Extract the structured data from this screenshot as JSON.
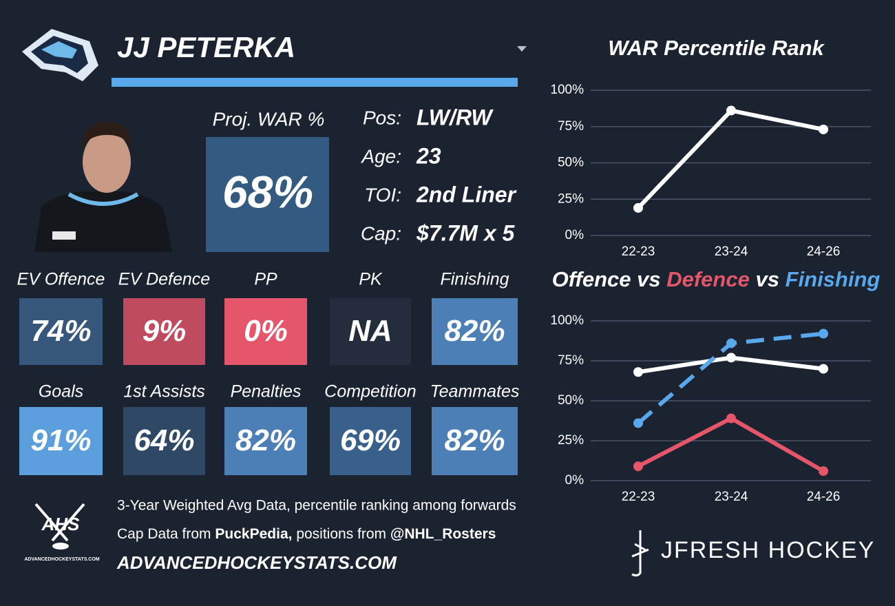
{
  "header": {
    "player_name": "JJ PETERKA"
  },
  "projection": {
    "label": "Proj. WAR %",
    "value": "68%",
    "color": "#335a80"
  },
  "bio": [
    {
      "label": "Pos:",
      "value": "LW/RW"
    },
    {
      "label": "Age:",
      "value": "23"
    },
    {
      "label": "TOI:",
      "value": "2nd Liner"
    },
    {
      "label": "Cap:",
      "value": "$7.7M x 5"
    }
  ],
  "tiles": [
    {
      "label": "EV Offence",
      "value": "74%",
      "color": "#36577b"
    },
    {
      "label": "EV Defence",
      "value": "9%",
      "color": "#c04b60"
    },
    {
      "label": "PP",
      "value": "0%",
      "color": "#e5566a"
    },
    {
      "label": "PK",
      "value": "NA",
      "color": "#232d3b"
    },
    {
      "label": "Finishing",
      "value": "82%",
      "color": "#4b7fb5"
    },
    {
      "label": "Goals",
      "value": "91%",
      "color": "#5a9fdc"
    },
    {
      "label": "1st Assists",
      "value": "64%",
      "color": "#2e4866"
    },
    {
      "label": "Penalties",
      "value": "82%",
      "color": "#4b7fb5"
    },
    {
      "label": "Competition",
      "value": "69%",
      "color": "#38608a"
    },
    {
      "label": "Teammates",
      "value": "82%",
      "color": "#4b7fb5"
    }
  ],
  "footer": {
    "note": "3-Year Weighted Avg Data, percentile ranking among forwards",
    "source_parts": [
      "Cap Data from",
      "PuckPedia,",
      "positions from",
      "@NHL_Rosters"
    ],
    "website": "ADVANCEDHOCKEYSTATS.COM"
  },
  "logos": {
    "ahs": "AHS",
    "ahs_caption": "ADVANCEDHOCKEYSTATS.COM",
    "brand": "JFRESH HOCKEY"
  },
  "chart_data": [
    {
      "type": "line",
      "title": "WAR Percentile Rank",
      "categories": [
        "22-23",
        "23-24",
        "24-26"
      ],
      "values": [
        19,
        86,
        73
      ],
      "color": "#ffffff",
      "ylim": [
        0,
        100
      ],
      "yticks": [
        {
          "value": 0,
          "label": "0%"
        },
        {
          "value": 25,
          "label": "25%"
        },
        {
          "value": 50,
          "label": "50%"
        },
        {
          "value": 75,
          "label": "75%"
        },
        {
          "value": 100,
          "label": "100%"
        }
      ],
      "grid": true
    },
    {
      "type": "line",
      "title_separator": "vs",
      "categories": [
        "22-23",
        "23-24",
        "24-26"
      ],
      "series": [
        {
          "name": "Offence",
          "color": "#ffffff",
          "values": [
            68,
            77,
            70
          ]
        },
        {
          "name": "Defence",
          "color": "#e5566a",
          "values": [
            9,
            39,
            6
          ]
        },
        {
          "name": "Finishing",
          "color": "#5aa8ec",
          "values": [
            36,
            86,
            92
          ],
          "dashed": true
        }
      ],
      "ylim": [
        0,
        100
      ],
      "yticks": [
        {
          "value": 0,
          "label": "0%"
        },
        {
          "value": 25,
          "label": "25%"
        },
        {
          "value": 50,
          "label": "50%"
        },
        {
          "value": 75,
          "label": "75%"
        },
        {
          "value": 100,
          "label": "100%"
        }
      ],
      "grid": true
    }
  ]
}
